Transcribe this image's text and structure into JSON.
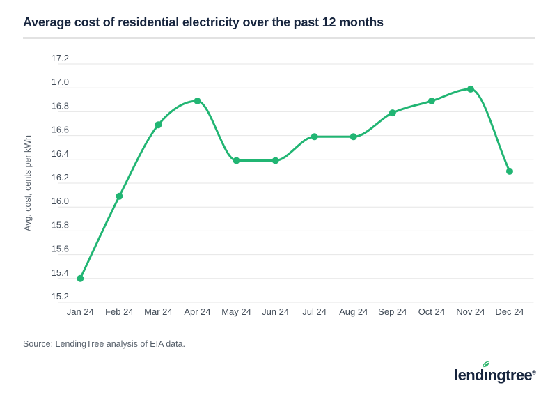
{
  "header": {
    "title": "Average cost of residential electricity over the past 12 months"
  },
  "chart_data": {
    "type": "line",
    "title": "Average cost of residential electricity over the past 12 months",
    "categories": [
      "Jan 24",
      "Feb 24",
      "Mar 24",
      "Apr 24",
      "May 24",
      "Jun 24",
      "Jul 24",
      "Aug 24",
      "Sep 24",
      "Oct 24",
      "Nov 24",
      "Dec 24"
    ],
    "series": [
      {
        "name": "Average cost of residential electricity",
        "values": [
          15.4,
          16.09,
          16.69,
          16.89,
          16.39,
          16.39,
          16.59,
          16.59,
          16.79,
          16.89,
          16.99,
          16.3
        ],
        "color": "#21b573"
      }
    ],
    "xlabel": "",
    "ylabel": "Avg. cost, cents per kWh",
    "ylim": [
      15.2,
      17.2
    ],
    "ytick_step": 0.2,
    "yticks": [
      17.2,
      17.0,
      16.8,
      16.6,
      16.4,
      16.2,
      16.0,
      15.8,
      15.6,
      15.4,
      15.2
    ],
    "grid": "horizontal",
    "legend": "none",
    "marker": "circle",
    "line_smooth": true
  },
  "style": {
    "grid_color": "#e6e6e6",
    "tick_label_color": "#414b57",
    "axis_title_color": "#555e69",
    "line_color": "#21b573",
    "marker_radius": 5,
    "line_width": 3
  },
  "footer": {
    "source": "Source: LendingTree analysis of EIA data.",
    "logo": {
      "pre": "lend",
      "dotless_i": "ı",
      "post": "ngtree",
      "registered": "®",
      "text_color": "#16243d",
      "leaf_color": "#2bb46b"
    }
  }
}
